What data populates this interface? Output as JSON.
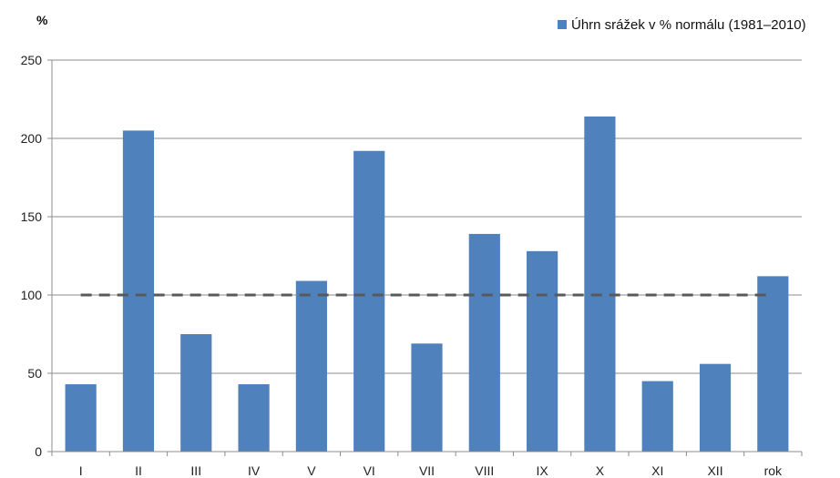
{
  "chart_data": {
    "type": "bar",
    "unit_label": "%",
    "categories": [
      "I",
      "II",
      "III",
      "IV",
      "V",
      "VI",
      "VII",
      "VIII",
      "IX",
      "X",
      "XI",
      "XII",
      "rok"
    ],
    "series": [
      {
        "name": "Úhrn srážek v % normálu (1981–2010)",
        "values": [
          43,
          205,
          75,
          43,
          109,
          192,
          69,
          139,
          128,
          214,
          45,
          56,
          112
        ],
        "color": "#4f81bd"
      }
    ],
    "reference_line": {
      "value": 100,
      "style": "dashed",
      "color": "#595959"
    },
    "ylim": [
      0,
      250
    ],
    "yticks": [
      0,
      50,
      100,
      150,
      200,
      250
    ],
    "grid": true,
    "legend_position": "top-right",
    "xlabel": "",
    "ylabel": ""
  }
}
